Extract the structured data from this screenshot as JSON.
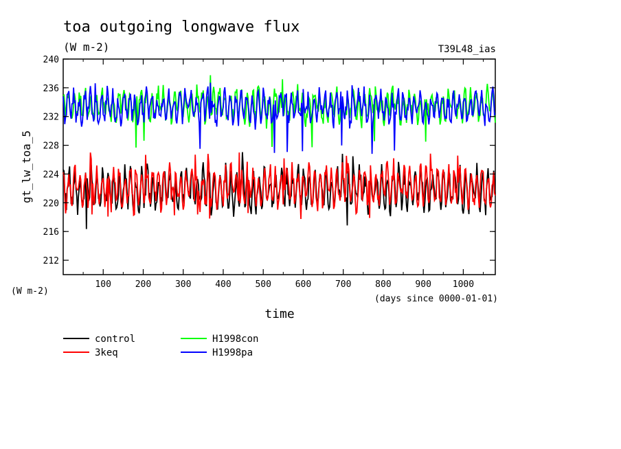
{
  "chart_data": {
    "type": "line",
    "title": "toa outgoing longwave flux",
    "units": "(W m-2)",
    "run_label": "T39L48_ias",
    "ylabel": "gt_lw_toa_5",
    "yunit_label": "(W m-2)",
    "xlabel": "time",
    "xunit_label": "(days since 0000-01-01)",
    "xlim": [
      0,
      1080
    ],
    "ylim": [
      210,
      240
    ],
    "xticks": [
      100,
      200,
      300,
      400,
      500,
      600,
      700,
      800,
      900,
      1000
    ],
    "yticks": [
      212,
      216,
      220,
      224,
      228,
      232,
      236,
      240
    ],
    "grid": false,
    "legend_position": "bottom-left",
    "series": [
      {
        "name": "control",
        "color": "#000000",
        "mean": 221.8,
        "amp": 2.2,
        "noise": 1.2,
        "min": 216,
        "max": 227.3
      },
      {
        "name": "3keq",
        "color": "#ff0000",
        "mean": 222.2,
        "amp": 2.2,
        "noise": 1.2,
        "min": 217.5,
        "max": 227
      },
      {
        "name": "H1998con",
        "color": "#00ff00",
        "mean": 233.5,
        "amp": 1.6,
        "noise": 1.1,
        "min": 227.5,
        "max": 238
      },
      {
        "name": "H1998pa",
        "color": "#0000ff",
        "mean": 233.3,
        "amp": 1.6,
        "noise": 1.1,
        "min": 226.8,
        "max": 237
      }
    ]
  }
}
